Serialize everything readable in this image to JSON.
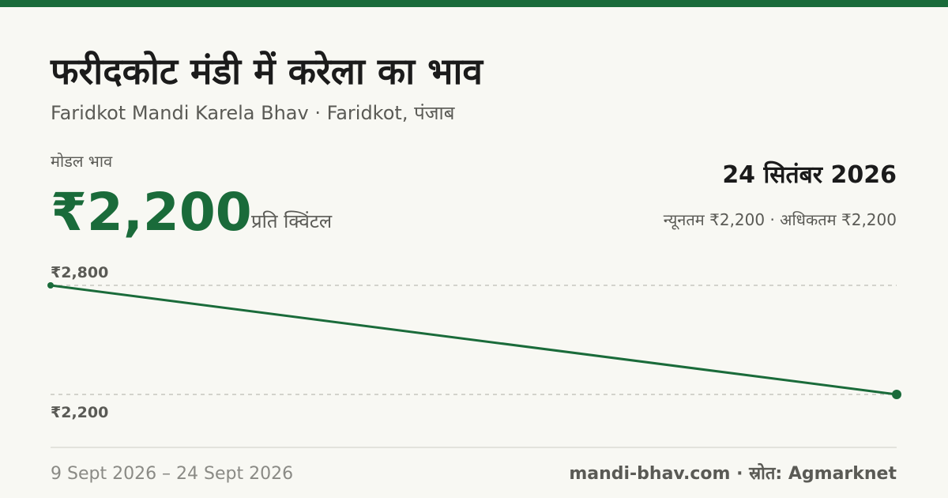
{
  "header": {
    "title": "फरीदकोट मंडी में करेला का भाव",
    "subtitle": "Faridkot Mandi Karela Bhav · Faridkot, पंजाब"
  },
  "price": {
    "label": "मोडल भाव",
    "value": "₹2,200",
    "unit": "प्रति क्विंटल",
    "date": "24 सितंबर 2026",
    "range": "न्यूनतम ₹2,200 · अधिकतम ₹2,200"
  },
  "chart_data": {
    "type": "line",
    "categories": [
      null,
      null
    ],
    "series": [
      {
        "color": "#1a6b3a",
        "values": [
          2800,
          2200
        ]
      }
    ],
    "ylim": [
      2200,
      2800
    ],
    "yticks": [
      {
        "value": 2800,
        "label": "₹2,800"
      },
      {
        "value": 2200,
        "label": "₹2,200"
      }
    ],
    "grid": true
  },
  "footer": {
    "period": "9 Sept 2026 – 24 Sept 2026",
    "source": "mandi-bhav.com · स्रोत: Agmarknet"
  }
}
